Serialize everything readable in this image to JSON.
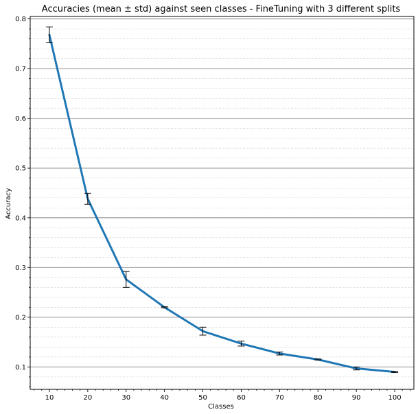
{
  "chart_data": {
    "type": "line",
    "title": "Accuracies (mean ± std) against seen classes - FineTuning with 3 different splits",
    "xlabel": "Classes",
    "ylabel": "Accuracy",
    "x": [
      10,
      20,
      30,
      40,
      50,
      60,
      70,
      80,
      90,
      100
    ],
    "series": [
      {
        "values": [
          0.768,
          0.438,
          0.276,
          0.22,
          0.172,
          0.147,
          0.127,
          0.115,
          0.097,
          0.09
        ],
        "std": [
          0.016,
          0.011,
          0.016,
          0.001,
          0.008,
          0.005,
          0.003,
          0.001,
          0.003,
          0.001
        ],
        "color": "#1f77b4"
      }
    ],
    "xlim": [
      5,
      105
    ],
    "ylim": [
      0.055,
      0.805
    ],
    "xticks": [
      "10",
      "20",
      "30",
      "40",
      "50",
      "60",
      "70",
      "80",
      "90",
      "100"
    ],
    "yticks": [
      "0.1",
      "0.2",
      "0.3",
      "0.4",
      "0.5",
      "0.6",
      "0.7",
      "0.8"
    ],
    "grid": {
      "major": true,
      "minor": true,
      "major_color": "#808080",
      "minor_color": "#d0d0d0"
    },
    "errorbar_color": "#000000"
  }
}
